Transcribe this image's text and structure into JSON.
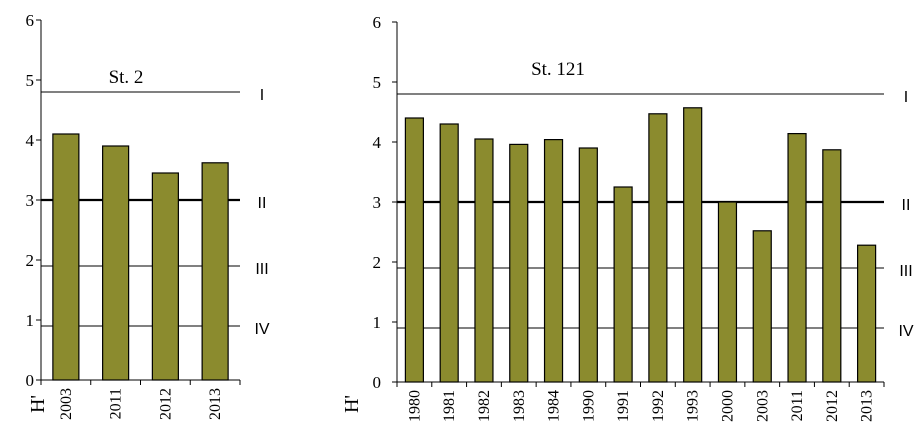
{
  "colors": {
    "bar_fill": "#8b8b2e",
    "bar_stroke": "#000000",
    "line": "#000000",
    "background": "#ffffff"
  },
  "chart_data": [
    {
      "type": "bar",
      "title": "St. 2",
      "ylabel": "H'",
      "ylim": [
        0,
        6
      ],
      "yticks": [
        "0",
        "1",
        "2",
        "3",
        "4",
        "5",
        "6"
      ],
      "categories": [
        "2003",
        "2011",
        "2012",
        "2013"
      ],
      "values": [
        4.1,
        3.9,
        3.45,
        3.62
      ],
      "reference_lines": [
        {
          "label": "I",
          "value": 4.8,
          "bold": false
        },
        {
          "label": "II",
          "value": 3.0,
          "bold": true
        },
        {
          "label": "III",
          "value": 1.9,
          "bold": false
        },
        {
          "label": "IV",
          "value": 0.9,
          "bold": false
        }
      ]
    },
    {
      "type": "bar",
      "title": "St. 121",
      "ylabel": "H'",
      "ylim": [
        0,
        6
      ],
      "yticks": [
        "0",
        "1",
        "2",
        "3",
        "4",
        "5",
        "6"
      ],
      "categories": [
        "1980",
        "1981",
        "1982",
        "1983",
        "1984",
        "1990",
        "1991",
        "1992",
        "1993",
        "2000",
        "2003",
        "2011",
        "2012",
        "2013"
      ],
      "values": [
        4.4,
        4.3,
        4.05,
        3.96,
        4.04,
        3.9,
        3.25,
        4.47,
        4.57,
        3.0,
        2.52,
        4.14,
        3.87,
        2.28
      ],
      "reference_lines": [
        {
          "label": "I",
          "value": 4.8,
          "bold": false
        },
        {
          "label": "II",
          "value": 3.0,
          "bold": true
        },
        {
          "label": "III",
          "value": 1.9,
          "bold": false
        },
        {
          "label": "IV",
          "value": 0.9,
          "bold": false
        }
      ]
    }
  ]
}
